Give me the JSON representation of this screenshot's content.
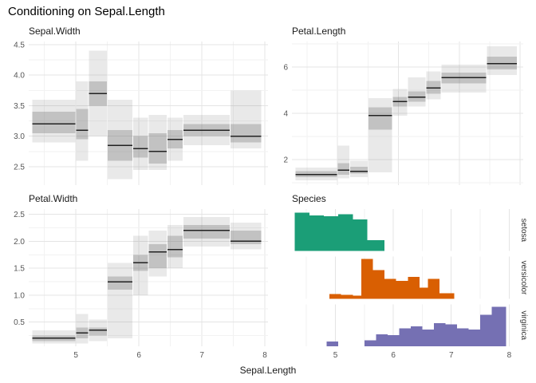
{
  "figure": {
    "title": "Conditioning on Sepal.Length",
    "x_axis_label": "Sepal.Length"
  },
  "palette": {
    "setosa": "#1b9e77",
    "versicolor": "#d95f02",
    "virginica": "#7570b3",
    "median_line": "#222222",
    "band_inner": "rgba(105,105,105,0.30)",
    "band_outer": "rgba(125,125,125,0.17)",
    "grid_major": "#e4e4e4",
    "grid_minor": "#f2f2f2",
    "tick_text": "#555555",
    "facet_text": "#333333"
  },
  "chart_data": [
    {
      "type": "crossbar",
      "title": "Sepal.Width",
      "xlim": [
        4.25,
        8.05
      ],
      "xticks": [
        5,
        6,
        7,
        8
      ],
      "xtick_labels": [
        "5",
        "6",
        "7",
        "8"
      ],
      "xticks_minor": [
        4.5,
        5.5,
        6.5,
        7.5
      ],
      "ylim": [
        2.2,
        4.55
      ],
      "yticks": [
        2.5,
        3.0,
        3.5,
        4.0,
        4.5
      ],
      "ytick_labels": [
        "2.5",
        "3.0",
        "3.5",
        "4.0",
        "4.5"
      ],
      "yticks_minor": [
        2.75,
        3.25,
        3.75,
        4.25
      ],
      "show_x_tick_labels": false,
      "segments": [
        {
          "x": [
            4.3,
            5.0
          ],
          "median": 3.2,
          "inner": [
            3.05,
            3.4
          ],
          "outer": [
            2.9,
            3.6
          ]
        },
        {
          "x": [
            5.0,
            5.2
          ],
          "median": 3.1,
          "inner": [
            2.95,
            3.45
          ],
          "outer": [
            2.6,
            3.9
          ]
        },
        {
          "x": [
            5.2,
            5.5
          ],
          "median": 3.7,
          "inner": [
            3.5,
            3.9
          ],
          "outer": [
            3.0,
            4.4
          ]
        },
        {
          "x": [
            5.5,
            5.9
          ],
          "median": 2.85,
          "inner": [
            2.6,
            3.1
          ],
          "outer": [
            2.3,
            3.6
          ]
        },
        {
          "x": [
            5.9,
            6.15
          ],
          "median": 2.8,
          "inner": [
            2.65,
            3.0
          ],
          "outer": [
            2.45,
            3.3
          ]
        },
        {
          "x": [
            6.15,
            6.45
          ],
          "median": 2.75,
          "inner": [
            2.55,
            3.05
          ],
          "outer": [
            2.45,
            3.35
          ]
        },
        {
          "x": [
            6.45,
            6.7
          ],
          "median": 2.95,
          "inner": [
            2.8,
            3.1
          ],
          "outer": [
            2.6,
            3.3
          ]
        },
        {
          "x": [
            6.7,
            7.45
          ],
          "median": 3.1,
          "inner": [
            3.0,
            3.2
          ],
          "outer": [
            2.85,
            3.35
          ]
        },
        {
          "x": [
            7.45,
            7.95
          ],
          "median": 3.0,
          "inner": [
            2.9,
            3.2
          ],
          "outer": [
            2.8,
            3.75
          ]
        }
      ]
    },
    {
      "type": "crossbar",
      "title": "Petal.Length",
      "xlim": [
        4.25,
        8.05
      ],
      "xticks": [
        5,
        6,
        7,
        8
      ],
      "xtick_labels": [
        "5",
        "6",
        "7",
        "8"
      ],
      "xticks_minor": [
        4.5,
        5.5,
        6.5,
        7.5
      ],
      "ylim": [
        0.9,
        7.1
      ],
      "yticks": [
        2,
        4,
        6
      ],
      "ytick_labels": [
        "2",
        "4",
        "6"
      ],
      "yticks_minor": [
        1,
        3,
        5,
        7
      ],
      "show_x_tick_labels": false,
      "segments": [
        {
          "x": [
            4.3,
            5.0
          ],
          "median": 1.35,
          "inner": [
            1.25,
            1.5
          ],
          "outer": [
            1.1,
            1.65
          ]
        },
        {
          "x": [
            5.0,
            5.2
          ],
          "median": 1.55,
          "inner": [
            1.35,
            1.85
          ],
          "outer": [
            1.2,
            2.6
          ]
        },
        {
          "x": [
            5.2,
            5.5
          ],
          "median": 1.5,
          "inner": [
            1.4,
            1.7
          ],
          "outer": [
            1.25,
            1.95
          ]
        },
        {
          "x": [
            5.5,
            5.9
          ],
          "median": 3.9,
          "inner": [
            3.3,
            4.25
          ],
          "outer": [
            1.45,
            4.65
          ]
        },
        {
          "x": [
            5.9,
            6.15
          ],
          "median": 4.5,
          "inner": [
            4.3,
            4.7
          ],
          "outer": [
            3.9,
            5.05
          ]
        },
        {
          "x": [
            6.15,
            6.45
          ],
          "median": 4.7,
          "inner": [
            4.5,
            4.95
          ],
          "outer": [
            4.3,
            5.55
          ]
        },
        {
          "x": [
            6.45,
            6.7
          ],
          "median": 5.1,
          "inner": [
            4.85,
            5.4
          ],
          "outer": [
            4.6,
            5.8
          ]
        },
        {
          "x": [
            6.7,
            7.45
          ],
          "median": 5.55,
          "inner": [
            5.3,
            5.75
          ],
          "outer": [
            4.9,
            6.1
          ]
        },
        {
          "x": [
            7.45,
            7.95
          ],
          "median": 6.15,
          "inner": [
            5.9,
            6.45
          ],
          "outer": [
            5.65,
            6.9
          ]
        }
      ]
    },
    {
      "type": "crossbar",
      "title": "Petal.Width",
      "xlim": [
        4.25,
        8.05
      ],
      "xticks": [
        5,
        6,
        7,
        8
      ],
      "xtick_labels": [
        "5",
        "6",
        "7",
        "8"
      ],
      "xticks_minor": [
        4.5,
        5.5,
        6.5,
        7.5
      ],
      "ylim": [
        0.05,
        2.6
      ],
      "yticks": [
        0.5,
        1.0,
        1.5,
        2.0,
        2.5
      ],
      "ytick_labels": [
        "0.5",
        "1.0",
        "1.5",
        "2.0",
        "2.5"
      ],
      "yticks_minor": [
        0.25,
        0.75,
        1.25,
        1.75,
        2.25
      ],
      "show_x_tick_labels": true,
      "segments": [
        {
          "x": [
            4.3,
            5.0
          ],
          "median": 0.2,
          "inner": [
            0.15,
            0.25
          ],
          "outer": [
            0.1,
            0.35
          ]
        },
        {
          "x": [
            5.0,
            5.2
          ],
          "median": 0.3,
          "inner": [
            0.2,
            0.4
          ],
          "outer": [
            0.1,
            0.65
          ]
        },
        {
          "x": [
            5.2,
            5.5
          ],
          "median": 0.35,
          "inner": [
            0.25,
            0.4
          ],
          "outer": [
            0.15,
            0.55
          ]
        },
        {
          "x": [
            5.5,
            5.9
          ],
          "median": 1.25,
          "inner": [
            1.1,
            1.35
          ],
          "outer": [
            0.2,
            1.6
          ]
        },
        {
          "x": [
            5.9,
            6.15
          ],
          "median": 1.6,
          "inner": [
            1.45,
            1.75
          ],
          "outer": [
            1.0,
            2.1
          ]
        },
        {
          "x": [
            6.15,
            6.45
          ],
          "median": 1.8,
          "inner": [
            1.5,
            1.95
          ],
          "outer": [
            1.35,
            2.2
          ]
        },
        {
          "x": [
            6.45,
            6.7
          ],
          "median": 1.85,
          "inner": [
            1.7,
            2.1
          ],
          "outer": [
            1.5,
            2.3
          ]
        },
        {
          "x": [
            6.7,
            7.45
          ],
          "median": 2.2,
          "inner": [
            2.05,
            2.3
          ],
          "outer": [
            1.9,
            2.45
          ]
        },
        {
          "x": [
            7.45,
            7.95
          ],
          "median": 2.0,
          "inner": [
            1.95,
            2.2
          ],
          "outer": [
            1.85,
            2.35
          ]
        }
      ]
    },
    {
      "type": "faceted_histogram",
      "title": "Species",
      "xlim": [
        4.25,
        8.05
      ],
      "xticks": [
        5,
        6,
        7,
        8
      ],
      "xtick_labels": [
        "5",
        "6",
        "7",
        "8"
      ],
      "xticks_minor": [
        4.5,
        5.5,
        6.5,
        7.5
      ],
      "show_x_tick_labels": true,
      "facets": [
        {
          "label": "setosa",
          "color_key": "setosa",
          "base": [
            4.3,
            5.85
          ],
          "bins": [
            {
              "x": [
                4.3,
                4.55
              ],
              "h": 0.97
            },
            {
              "x": [
                4.55,
                4.8
              ],
              "h": 0.9
            },
            {
              "x": [
                4.8,
                5.05
              ],
              "h": 0.88
            },
            {
              "x": [
                5.05,
                5.3
              ],
              "h": 0.93
            },
            {
              "x": [
                5.3,
                5.55
              ],
              "h": 0.8
            },
            {
              "x": [
                5.55,
                5.85
              ],
              "h": 0.28
            }
          ]
        },
        {
          "label": "versicolor",
          "color_key": "versicolor",
          "base": [
            4.9,
            7.05
          ],
          "bins": [
            {
              "x": [
                4.9,
                5.1
              ],
              "h": 0.12
            },
            {
              "x": [
                5.1,
                5.3
              ],
              "h": 0.1
            },
            {
              "x": [
                5.3,
                5.45
              ],
              "h": 0.08
            },
            {
              "x": [
                5.45,
                5.65
              ],
              "h": 1.0
            },
            {
              "x": [
                5.65,
                5.85
              ],
              "h": 0.72
            },
            {
              "x": [
                5.85,
                6.05
              ],
              "h": 0.5
            },
            {
              "x": [
                6.05,
                6.25
              ],
              "h": 0.45
            },
            {
              "x": [
                6.25,
                6.45
              ],
              "h": 0.55
            },
            {
              "x": [
                6.45,
                6.6
              ],
              "h": 0.28
            },
            {
              "x": [
                6.6,
                6.8
              ],
              "h": 0.5
            },
            {
              "x": [
                6.8,
                7.05
              ],
              "h": 0.14
            }
          ]
        },
        {
          "label": "virginica",
          "color_key": "virginica",
          "base": [
            5.5,
            7.95
          ],
          "bins": [
            {
              "x": [
                4.85,
                5.05
              ],
              "h": 0.12
            },
            {
              "x": [
                5.5,
                5.7
              ],
              "h": 0.15
            },
            {
              "x": [
                5.7,
                5.9
              ],
              "h": 0.3
            },
            {
              "x": [
                5.9,
                6.1
              ],
              "h": 0.28
            },
            {
              "x": [
                6.1,
                6.3
              ],
              "h": 0.45
            },
            {
              "x": [
                6.3,
                6.5
              ],
              "h": 0.5
            },
            {
              "x": [
                6.5,
                6.7
              ],
              "h": 0.42
            },
            {
              "x": [
                6.7,
                6.9
              ],
              "h": 0.58
            },
            {
              "x": [
                6.9,
                7.1
              ],
              "h": 0.55
            },
            {
              "x": [
                7.1,
                7.3
              ],
              "h": 0.45
            },
            {
              "x": [
                7.3,
                7.5
              ],
              "h": 0.42
            },
            {
              "x": [
                7.5,
                7.7
              ],
              "h": 0.8
            },
            {
              "x": [
                7.7,
                7.95
              ],
              "h": 1.0
            }
          ]
        }
      ]
    }
  ]
}
